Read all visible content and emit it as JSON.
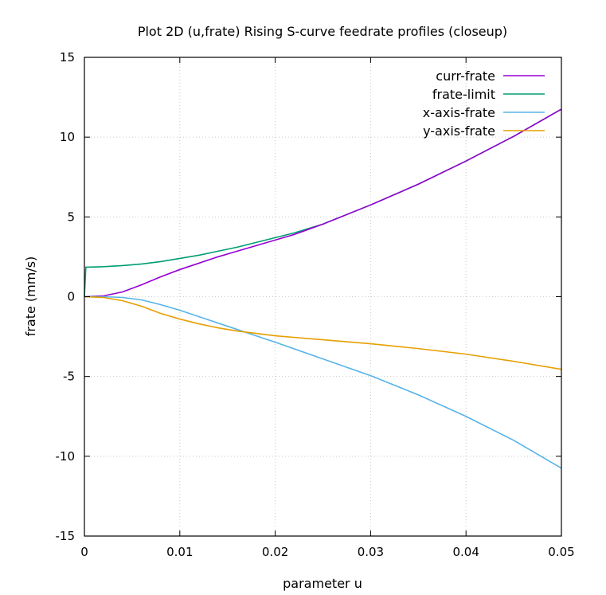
{
  "chart_data": {
    "type": "line",
    "title": "Plot 2D (u,frate) Rising S-curve feedrate profiles (closeup)",
    "xlabel": "parameter u",
    "ylabel": "frate (mm/s)",
    "xlim": [
      0,
      0.05
    ],
    "ylim": [
      -15,
      15
    ],
    "xticks": [
      0,
      0.01,
      0.02,
      0.03,
      0.04,
      0.05
    ],
    "xtick_labels": [
      "0",
      "0.01",
      "0.02",
      "0.03",
      "0.04",
      "0.05"
    ],
    "yticks": [
      -15,
      -10,
      -5,
      0,
      5,
      10,
      15
    ],
    "ytick_labels": [
      "-15",
      "-10",
      "-5",
      "0",
      "5",
      "10",
      "15"
    ],
    "grid": true,
    "legend_position": "top-right",
    "series": [
      {
        "name": "curr-frate",
        "color": "#9400d3",
        "points": [
          [
            0,
            0
          ],
          [
            0.002,
            0.05
          ],
          [
            0.004,
            0.3
          ],
          [
            0.006,
            0.75
          ],
          [
            0.008,
            1.25
          ],
          [
            0.01,
            1.7
          ],
          [
            0.012,
            2.1
          ],
          [
            0.014,
            2.5
          ],
          [
            0.016,
            2.85
          ],
          [
            0.018,
            3.2
          ],
          [
            0.02,
            3.55
          ],
          [
            0.022,
            3.9
          ],
          [
            0.025,
            4.55
          ],
          [
            0.03,
            5.75
          ],
          [
            0.035,
            7.05
          ],
          [
            0.04,
            8.5
          ],
          [
            0.045,
            10.05
          ],
          [
            0.05,
            11.75
          ]
        ]
      },
      {
        "name": "frate-limit",
        "color": "#009e73",
        "points": [
          [
            0,
            0
          ],
          [
            0.00015,
            1.85
          ],
          [
            0.002,
            1.88
          ],
          [
            0.004,
            1.95
          ],
          [
            0.006,
            2.05
          ],
          [
            0.008,
            2.2
          ],
          [
            0.01,
            2.4
          ],
          [
            0.012,
            2.6
          ],
          [
            0.014,
            2.85
          ],
          [
            0.016,
            3.1
          ],
          [
            0.018,
            3.4
          ],
          [
            0.02,
            3.7
          ],
          [
            0.022,
            4.0
          ],
          [
            0.025,
            4.55
          ],
          [
            0.03,
            5.75
          ],
          [
            0.035,
            7.05
          ],
          [
            0.04,
            8.5
          ],
          [
            0.045,
            10.05
          ],
          [
            0.05,
            11.75
          ]
        ]
      },
      {
        "name": "x-axis-frate",
        "color": "#56b4e9",
        "points": [
          [
            0,
            0
          ],
          [
            0.002,
            0.0
          ],
          [
            0.004,
            -0.05
          ],
          [
            0.006,
            -0.2
          ],
          [
            0.008,
            -0.5
          ],
          [
            0.01,
            -0.85
          ],
          [
            0.012,
            -1.25
          ],
          [
            0.014,
            -1.65
          ],
          [
            0.016,
            -2.05
          ],
          [
            0.018,
            -2.45
          ],
          [
            0.02,
            -2.85
          ],
          [
            0.025,
            -3.9
          ],
          [
            0.03,
            -4.95
          ],
          [
            0.035,
            -6.15
          ],
          [
            0.04,
            -7.5
          ],
          [
            0.045,
            -9.0
          ],
          [
            0.05,
            -10.75
          ]
        ]
      },
      {
        "name": "y-axis-frate",
        "color": "#e69f00",
        "points": [
          [
            0,
            0
          ],
          [
            0.002,
            -0.05
          ],
          [
            0.004,
            -0.25
          ],
          [
            0.006,
            -0.6
          ],
          [
            0.008,
            -1.05
          ],
          [
            0.01,
            -1.4
          ],
          [
            0.012,
            -1.7
          ],
          [
            0.014,
            -1.95
          ],
          [
            0.016,
            -2.15
          ],
          [
            0.018,
            -2.3
          ],
          [
            0.02,
            -2.45
          ],
          [
            0.025,
            -2.7
          ],
          [
            0.03,
            -2.95
          ],
          [
            0.035,
            -3.25
          ],
          [
            0.04,
            -3.6
          ],
          [
            0.045,
            -4.05
          ],
          [
            0.05,
            -4.55
          ]
        ]
      }
    ]
  }
}
